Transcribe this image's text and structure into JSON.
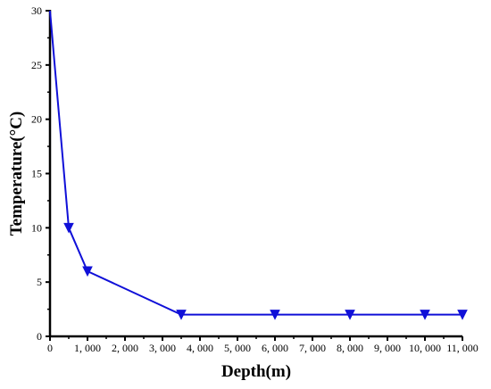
{
  "chart_data": {
    "type": "line",
    "title": "",
    "xlabel": "Depth(m)",
    "ylabel": "Temperature(°C)",
    "xlim": [
      0,
      11000
    ],
    "ylim": [
      0,
      30
    ],
    "x_ticks": [
      0,
      1000,
      2000,
      3000,
      4000,
      5000,
      6000,
      7000,
      8000,
      9000,
      10000,
      11000
    ],
    "x_tick_labels": [
      "0",
      "1, 000",
      "2, 000",
      "3, 000",
      "4, 000",
      "5, 000",
      "6, 000",
      "7, 000",
      "8, 000",
      "9, 000",
      "10, 000",
      "11, 000"
    ],
    "y_ticks": [
      0,
      5,
      10,
      15,
      20,
      25,
      30
    ],
    "y_tick_labels": [
      "0",
      "5",
      "10",
      "15",
      "20",
      "25",
      "30"
    ],
    "grid": false,
    "legend": "none",
    "series": [
      {
        "color": "#1010d8",
        "marker": "down-triangle",
        "x": [
          0,
          500,
          1000,
          3500,
          6000,
          8000,
          10000,
          11000
        ],
        "y": [
          30,
          10,
          6,
          2,
          2,
          2,
          2,
          2
        ]
      }
    ]
  }
}
